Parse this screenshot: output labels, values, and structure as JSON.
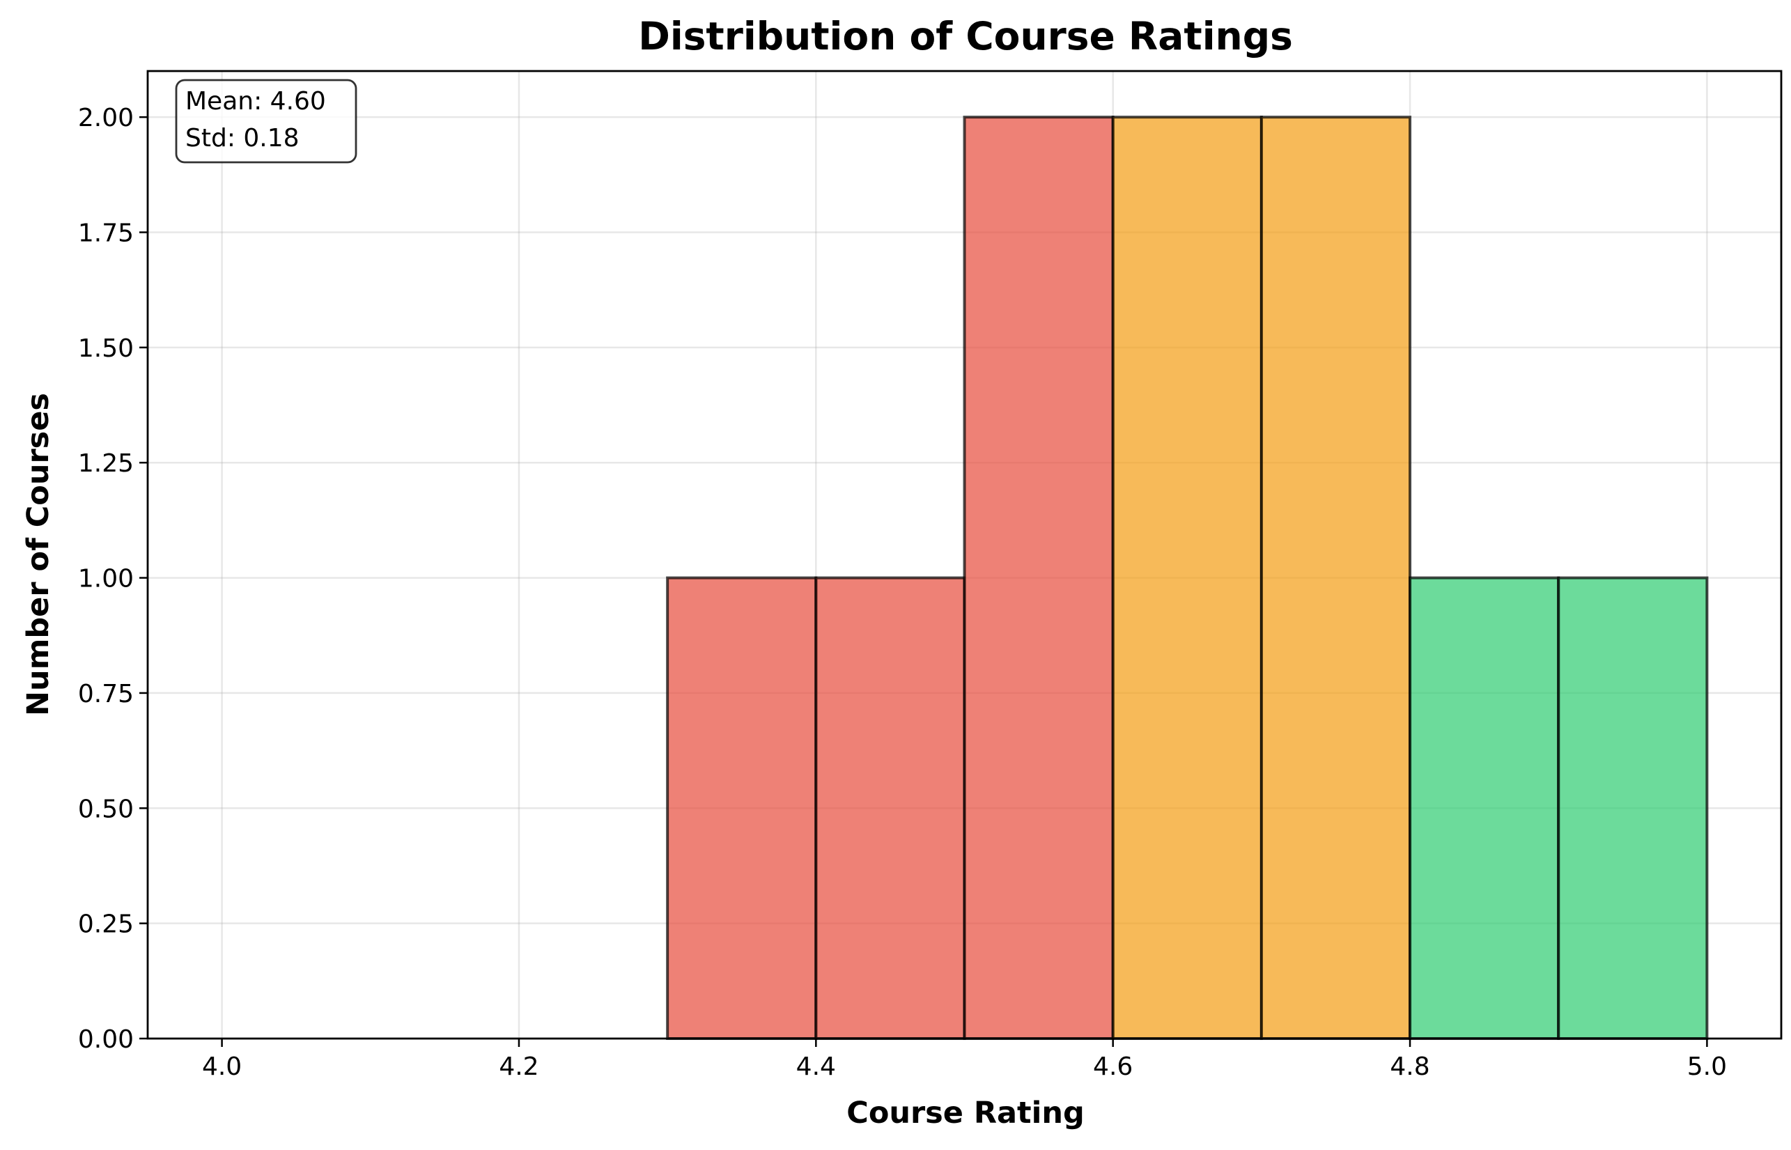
{
  "chart_data": {
    "type": "bar",
    "title": "Distribution of Course Ratings",
    "xlabel": "Course Rating",
    "ylabel": "Number of Courses",
    "xlim": [
      3.95,
      5.05
    ],
    "ylim": [
      0,
      2.1
    ],
    "xticks": [
      "4.0",
      "4.2",
      "4.4",
      "4.6",
      "4.8",
      "5.0"
    ],
    "xtick_values": [
      4.0,
      4.2,
      4.4,
      4.6,
      4.8,
      5.0
    ],
    "yticks": [
      "0.00",
      "0.25",
      "0.50",
      "0.75",
      "1.00",
      "1.25",
      "1.50",
      "1.75",
      "2.00"
    ],
    "ytick_values": [
      0,
      0.25,
      0.5,
      0.75,
      1.0,
      1.25,
      1.5,
      1.75,
      2.0
    ],
    "grid": true,
    "bins": [
      {
        "x0": 4.0,
        "x1": 4.1,
        "count": 0,
        "color": "#e74c3c"
      },
      {
        "x0": 4.1,
        "x1": 4.2,
        "count": 0,
        "color": "#e74c3c"
      },
      {
        "x0": 4.2,
        "x1": 4.3,
        "count": 0,
        "color": "#e74c3c"
      },
      {
        "x0": 4.3,
        "x1": 4.4,
        "count": 1,
        "color": "#e74c3c"
      },
      {
        "x0": 4.4,
        "x1": 4.5,
        "count": 1,
        "color": "#e74c3c"
      },
      {
        "x0": 4.5,
        "x1": 4.6,
        "count": 2,
        "color": "#e74c3c"
      },
      {
        "x0": 4.6,
        "x1": 4.7,
        "count": 2,
        "color": "#f39c12"
      },
      {
        "x0": 4.7,
        "x1": 4.8,
        "count": 2,
        "color": "#f39c12"
      },
      {
        "x0": 4.8,
        "x1": 4.9,
        "count": 1,
        "color": "#2ecc71"
      },
      {
        "x0": 4.9,
        "x1": 5.0,
        "count": 1,
        "color": "#2ecc71"
      }
    ],
    "bar_opacity": 0.7,
    "stats_box": {
      "position": "top-left",
      "mean_text": "Mean: 4.60",
      "std_text": "Std: 0.18"
    }
  }
}
